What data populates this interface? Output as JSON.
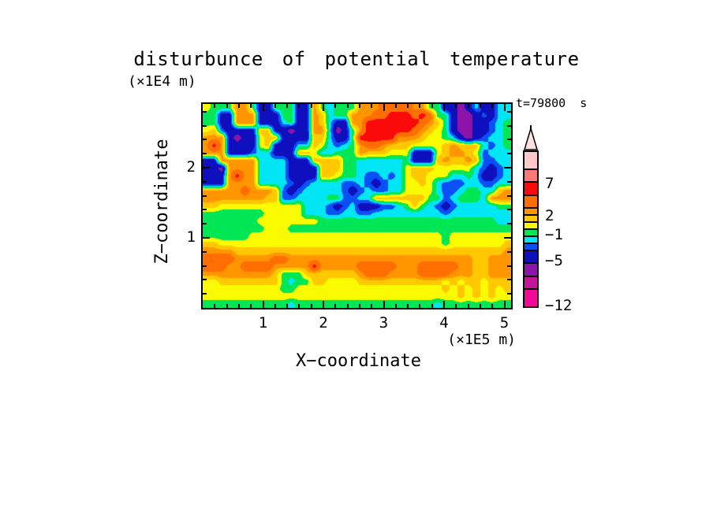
{
  "title": "disturbunce of potential temperature",
  "time_label": "t=79800  s",
  "y_axis": {
    "unit_label": "(×1E4 m)",
    "axis_title": "Z−coordinate",
    "tick_values": [
      1,
      2
    ],
    "tick_labels": [
      "1",
      "2"
    ],
    "minor_step": 0.2,
    "max": 2.91
  },
  "x_axis": {
    "unit_label": "(×1E5 m)",
    "axis_title": "X−coordinate",
    "tick_values": [
      1,
      2,
      3,
      4,
      5
    ],
    "tick_labels": [
      "1",
      "2",
      "3",
      "4",
      "5"
    ],
    "minor_step": 0.2,
    "max": 5.11
  },
  "colorbar": {
    "range": [
      -12,
      12
    ],
    "levels": [
      -12,
      -9,
      -7,
      -5,
      -3,
      -2,
      -1,
      0,
      1,
      2,
      3,
      5,
      7,
      9,
      12
    ],
    "colors": [
      "#F00A96",
      "#C41498",
      "#8C14A8",
      "#0F0FBE",
      "#0A50F5",
      "#00E6F5",
      "#00E655",
      "#FAFA00",
      "#FFC800",
      "#FF9600",
      "#FF6E00",
      "#FA0A0A",
      "#FA7878",
      "#FFC8C8"
    ],
    "arrow_fill": "#FFE1E1",
    "tick_labels": [
      {
        "text": "7",
        "value": 7
      },
      {
        "text": "2",
        "value": 2
      },
      {
        "text": "−1",
        "value": -1
      },
      {
        "text": "−5",
        "value": -5
      },
      {
        "text": "−12",
        "value": -12
      }
    ]
  },
  "chart_data": {
    "type": "heatmap",
    "title": "disturbunce of potential temperature",
    "xlabel": "X−coordinate (×1E5 m)",
    "ylabel": "Z−coordinate (×1E4 m)",
    "time": "t=79800 s",
    "x_range": [
      0,
      5.11
    ],
    "y_range": [
      0,
      2.91
    ],
    "levels": [
      -12,
      -9,
      -7,
      -5,
      -3,
      -2,
      -1,
      0,
      1,
      2,
      3,
      5,
      7,
      9,
      12
    ],
    "value_key": {
      "p": -10.5,
      "m": -8,
      "v": -6,
      "n": -4,
      "b": -2.5,
      "c": -1.5,
      "g": -0.5,
      "y": 0.5,
      "d": 1.5,
      "o": 2.5,
      "r": 4,
      "R": 6,
      "s": 8,
      "P": 10.5
    },
    "grid_orientation": "rows listed top to bottom, 40 columns left to right",
    "grid": [
      "ygggoognngggnnogcgggooorrrrooggnnvncnncc",
      "ggnnooonnnggnnodcggooorrRRRrRrggnvvnbncc",
      "ggnnooonnncgnnodcnnooRRRRRRRrodgnvvnnbcg",
      "ydbnnnnddnnvnnoocvngoRRRRRRrodygnvvnnbcg",
      "ooonvnnyddnnnnddcnngRRRRRooodyygcnvnbccg",
      "oRonnnnydnnnccdycbcgorrodddyyyydodddcbcg",
      "ooonnnbccnnnddyccgggodddyyynnnydoodybccc",
      "nnoooooccccnnnddddggccccccgnnndoddodbbcc",
      "nnvooooccccnnnndddggccccccydddyyyyycbnbc",
      "nnnoRooccccnnnnddyggcbbcbcyddyyyccgcnnbc",
      "nnnooooccccbnbccccbbcbnbccyydycbbbccbbcc",
      "ooooorooodbnbcccccbnbcbbccyyyycbbcggccdo",
      "ooooooooddbbccccggbbccdddddddggbcgggcooo",
      "ddyyyyyyyyyyycccbnbcnnnbbcgdgcbnbcccccgg",
      "ggggggggyyyyycccbbccbbcccccccccbcccccccc",
      "gggggggyyyyyyyygggggggggggggggggggggggcc",
      "ggggggggyyyggggggggggggggggggggggggggggg",
      "ggggggyyyyyyyyyyyyyyyyyyyyyyyyygyyyyyyyy",
      "ddyyyyyyyyyyyyyyyyyyyyyyyyyyyyygyyyyyyyd",
      "oooodddddddddddddddddddddddddddddddddddo",
      "rrrrooooorrooooooooooooooooooooooooddooo",
      "rrroorrrroooooRooooorrrrrooorrrrrooddooo",
      "ooooooooodgggdddddddorrroooorrrroooddooo",
      "yyddddddddgcggddyyyydddddddddddydyddyddd",
      "yyyyyyyyyyggyyyyyyyyyyyyyyyyyyydydydydyd",
      "yyyyyyyyyyyyyyyyyyyyyyyyyyyyyyyyydydydyy",
      "gggggggggggcggggggggggggggggggcggggggggg"
    ]
  }
}
